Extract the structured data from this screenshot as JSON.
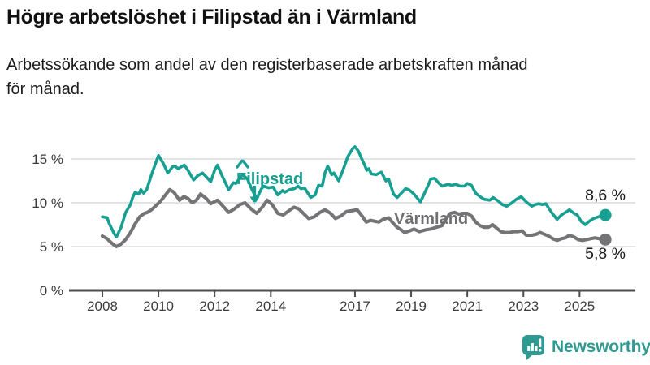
{
  "header": {
    "title": "Högre arbetslöshet i Filipstad än i Värmland",
    "subtitle_line1": "Arbetssökande som andel av den registerbaserade arbetskraften månad",
    "subtitle_line2": "för månad."
  },
  "colors": {
    "accent_teal": "#17a092",
    "line_gray": "#747477",
    "label_gray": "#6f6f72",
    "grid": "#dcdcdc",
    "axis": "#4d4d4d",
    "axis_text": "#3c3c3c",
    "end_label_text": "#1a1a1a",
    "logo_teal": "#2e9a92"
  },
  "footer": {
    "brand": "Newsworthy"
  },
  "chart_data": {
    "type": "line",
    "title": "Högre arbetslöshet i Filipstad än i Värmland",
    "subtitle": "Arbetssökande som andel av den registerbaserade arbetskraften månad för månad.",
    "x_axis": {
      "ticks": [
        2008,
        2010,
        2012,
        2014,
        2017,
        2019,
        2021,
        2023,
        2025
      ],
      "range": [
        2008,
        2026
      ],
      "grid": false
    },
    "y_axis": {
      "tick_values": [
        0,
        5,
        10,
        15
      ],
      "tick_labels": [
        "0 %",
        "5 %",
        "10 %",
        "15 %"
      ],
      "unit": "%",
      "range": [
        0,
        17
      ],
      "grid": true
    },
    "legend_position": "inline-annotations",
    "series": [
      {
        "name": "Filipstad",
        "color": "#17a092",
        "end_label": "8,6 %",
        "end_value": 8.6,
        "points": [
          [
            2008.0,
            8.4
          ],
          [
            2008.17,
            8.3
          ],
          [
            2008.25,
            7.6
          ],
          [
            2008.42,
            6.5
          ],
          [
            2008.5,
            6.1
          ],
          [
            2008.67,
            7.2
          ],
          [
            2008.83,
            8.9
          ],
          [
            2009.0,
            9.8
          ],
          [
            2009.08,
            10.6
          ],
          [
            2009.17,
            11.2
          ],
          [
            2009.3,
            11.0
          ],
          [
            2009.37,
            11.5
          ],
          [
            2009.47,
            11.1
          ],
          [
            2009.58,
            11.5
          ],
          [
            2009.75,
            13.2
          ],
          [
            2009.92,
            14.7
          ],
          [
            2010.0,
            15.4
          ],
          [
            2010.17,
            14.5
          ],
          [
            2010.33,
            13.4
          ],
          [
            2010.5,
            14.1
          ],
          [
            2010.58,
            14.2
          ],
          [
            2010.7,
            13.9
          ],
          [
            2010.92,
            14.3
          ],
          [
            2011.05,
            13.7
          ],
          [
            2011.25,
            12.6
          ],
          [
            2011.4,
            13.1
          ],
          [
            2011.57,
            13.4
          ],
          [
            2011.75,
            12.8
          ],
          [
            2011.86,
            12.4
          ],
          [
            2012.0,
            13.7
          ],
          [
            2012.1,
            14.3
          ],
          [
            2012.25,
            13.2
          ],
          [
            2012.5,
            11.5
          ],
          [
            2012.67,
            12.3
          ],
          [
            2012.75,
            12.2
          ],
          [
            2012.92,
            12.9
          ],
          [
            2013.0,
            13.2
          ],
          [
            2013.17,
            12.7
          ],
          [
            2013.33,
            11.5
          ],
          [
            2013.5,
            10.5
          ],
          [
            2013.67,
            11.6
          ],
          [
            2013.75,
            11.9
          ],
          [
            2013.92,
            11.7
          ],
          [
            2014.08,
            11.8
          ],
          [
            2014.25,
            10.9
          ],
          [
            2014.42,
            11.4
          ],
          [
            2014.5,
            11.2
          ],
          [
            2014.67,
            11.5
          ],
          [
            2014.83,
            11.6
          ],
          [
            2014.97,
            11.9
          ],
          [
            2015.08,
            11.6
          ],
          [
            2015.2,
            11.7
          ],
          [
            2015.42,
            10.6
          ],
          [
            2015.58,
            10.9
          ],
          [
            2015.7,
            12.0
          ],
          [
            2015.83,
            11.9
          ],
          [
            2015.93,
            13.4
          ],
          [
            2016.03,
            14.2
          ],
          [
            2016.17,
            13.2
          ],
          [
            2016.25,
            13.4
          ],
          [
            2016.42,
            12.5
          ],
          [
            2016.58,
            13.8
          ],
          [
            2016.75,
            15.3
          ],
          [
            2016.92,
            16.2
          ],
          [
            2017.0,
            16.4
          ],
          [
            2017.12,
            15.9
          ],
          [
            2017.27,
            14.8
          ],
          [
            2017.33,
            14.4
          ],
          [
            2017.42,
            13.7
          ],
          [
            2017.5,
            13.9
          ],
          [
            2017.58,
            13.3
          ],
          [
            2017.75,
            13.2
          ],
          [
            2017.94,
            13.5
          ],
          [
            2018.1,
            12.5
          ],
          [
            2018.2,
            12.7
          ],
          [
            2018.37,
            11.0
          ],
          [
            2018.5,
            10.6
          ],
          [
            2018.8,
            11.6
          ],
          [
            2018.92,
            11.5
          ],
          [
            2019.1,
            11.0
          ],
          [
            2019.33,
            10.1
          ],
          [
            2019.55,
            11.6
          ],
          [
            2019.7,
            12.7
          ],
          [
            2019.83,
            12.8
          ],
          [
            2020.0,
            12.2
          ],
          [
            2020.1,
            11.9
          ],
          [
            2020.3,
            12.1
          ],
          [
            2020.45,
            12.0
          ],
          [
            2020.6,
            12.1
          ],
          [
            2020.75,
            11.9
          ],
          [
            2020.9,
            11.9
          ],
          [
            2021.0,
            12.2
          ],
          [
            2021.15,
            12.0
          ],
          [
            2021.3,
            11.1
          ],
          [
            2021.45,
            10.7
          ],
          [
            2021.6,
            10.4
          ],
          [
            2021.8,
            10.3
          ],
          [
            2021.92,
            10.6
          ],
          [
            2022.1,
            10.2
          ],
          [
            2022.25,
            9.8
          ],
          [
            2022.4,
            9.6
          ],
          [
            2022.55,
            9.9
          ],
          [
            2022.75,
            10.4
          ],
          [
            2022.92,
            10.7
          ],
          [
            2023.1,
            10.1
          ],
          [
            2023.3,
            9.6
          ],
          [
            2023.42,
            9.8
          ],
          [
            2023.55,
            9.9
          ],
          [
            2023.67,
            9.8
          ],
          [
            2023.8,
            9.9
          ],
          [
            2023.92,
            9.3
          ],
          [
            2024.05,
            8.7
          ],
          [
            2024.2,
            8.1
          ],
          [
            2024.35,
            8.6
          ],
          [
            2024.5,
            8.9
          ],
          [
            2024.64,
            9.2
          ],
          [
            2024.8,
            8.8
          ],
          [
            2024.92,
            8.6
          ],
          [
            2025.05,
            7.9
          ],
          [
            2025.2,
            7.5
          ],
          [
            2025.35,
            7.9
          ],
          [
            2025.5,
            8.2
          ],
          [
            2025.67,
            8.4
          ],
          [
            2025.92,
            8.6
          ]
        ]
      },
      {
        "name": "Värmland",
        "color": "#747477",
        "end_label": "5,8 %",
        "end_value": 5.8,
        "points": [
          [
            2008.0,
            6.2
          ],
          [
            2008.17,
            5.9
          ],
          [
            2008.33,
            5.4
          ],
          [
            2008.5,
            5.0
          ],
          [
            2008.67,
            5.3
          ],
          [
            2008.83,
            5.8
          ],
          [
            2009.0,
            6.6
          ],
          [
            2009.17,
            7.6
          ],
          [
            2009.33,
            8.4
          ],
          [
            2009.5,
            8.8
          ],
          [
            2009.6,
            8.9
          ],
          [
            2009.75,
            9.2
          ],
          [
            2009.92,
            9.7
          ],
          [
            2010.08,
            10.2
          ],
          [
            2010.25,
            10.9
          ],
          [
            2010.4,
            11.5
          ],
          [
            2010.55,
            11.2
          ],
          [
            2010.75,
            10.3
          ],
          [
            2010.9,
            10.7
          ],
          [
            2011.05,
            10.5
          ],
          [
            2011.2,
            10.0
          ],
          [
            2011.35,
            10.3
          ],
          [
            2011.5,
            11.0
          ],
          [
            2011.7,
            10.5
          ],
          [
            2011.86,
            9.9
          ],
          [
            2012.1,
            10.3
          ],
          [
            2012.3,
            9.6
          ],
          [
            2012.5,
            8.9
          ],
          [
            2012.7,
            9.3
          ],
          [
            2012.9,
            9.8
          ],
          [
            2013.08,
            10.0
          ],
          [
            2013.3,
            9.3
          ],
          [
            2013.5,
            8.8
          ],
          [
            2013.7,
            9.5
          ],
          [
            2013.87,
            10.3
          ],
          [
            2014.05,
            9.8
          ],
          [
            2014.25,
            8.8
          ],
          [
            2014.44,
            8.6
          ],
          [
            2014.65,
            9.1
          ],
          [
            2014.83,
            9.5
          ],
          [
            2015.0,
            9.3
          ],
          [
            2015.16,
            8.8
          ],
          [
            2015.35,
            8.2
          ],
          [
            2015.55,
            8.4
          ],
          [
            2015.75,
            8.9
          ],
          [
            2015.93,
            9.2
          ],
          [
            2016.13,
            8.8
          ],
          [
            2016.3,
            8.2
          ],
          [
            2016.5,
            8.5
          ],
          [
            2016.7,
            9.0
          ],
          [
            2016.9,
            9.1
          ],
          [
            2017.08,
            9.2
          ],
          [
            2017.25,
            8.5
          ],
          [
            2017.4,
            7.8
          ],
          [
            2017.55,
            8.0
          ],
          [
            2017.7,
            7.9
          ],
          [
            2017.85,
            7.8
          ],
          [
            2018.0,
            8.1
          ],
          [
            2018.2,
            8.3
          ],
          [
            2018.35,
            7.7
          ],
          [
            2018.5,
            7.2
          ],
          [
            2018.65,
            6.9
          ],
          [
            2018.77,
            6.6
          ],
          [
            2018.95,
            6.8
          ],
          [
            2019.1,
            7.0
          ],
          [
            2019.3,
            6.7
          ],
          [
            2019.5,
            6.9
          ],
          [
            2019.7,
            7.0
          ],
          [
            2019.9,
            7.2
          ],
          [
            2020.1,
            7.4
          ],
          [
            2020.25,
            8.2
          ],
          [
            2020.4,
            8.8
          ],
          [
            2020.55,
            8.9
          ],
          [
            2020.7,
            8.7
          ],
          [
            2020.85,
            8.8
          ],
          [
            2021.0,
            8.8
          ],
          [
            2021.15,
            8.5
          ],
          [
            2021.3,
            7.8
          ],
          [
            2021.45,
            7.4
          ],
          [
            2021.6,
            7.2
          ],
          [
            2021.75,
            7.2
          ],
          [
            2021.9,
            7.5
          ],
          [
            2022.05,
            7.1
          ],
          [
            2022.2,
            6.7
          ],
          [
            2022.35,
            6.6
          ],
          [
            2022.5,
            6.6
          ],
          [
            2022.65,
            6.7
          ],
          [
            2022.8,
            6.7
          ],
          [
            2022.95,
            6.8
          ],
          [
            2023.1,
            6.3
          ],
          [
            2023.3,
            6.3
          ],
          [
            2023.45,
            6.4
          ],
          [
            2023.6,
            6.6
          ],
          [
            2023.75,
            6.4
          ],
          [
            2023.9,
            6.2
          ],
          [
            2024.05,
            5.9
          ],
          [
            2024.2,
            5.7
          ],
          [
            2024.35,
            5.9
          ],
          [
            2024.5,
            6.0
          ],
          [
            2024.64,
            6.3
          ],
          [
            2024.8,
            6.1
          ],
          [
            2024.95,
            5.8
          ],
          [
            2025.1,
            5.7
          ],
          [
            2025.25,
            5.8
          ],
          [
            2025.4,
            5.9
          ],
          [
            2025.55,
            6.0
          ],
          [
            2025.7,
            5.9
          ],
          [
            2025.92,
            5.8
          ]
        ]
      }
    ],
    "annotations": [
      {
        "text": "Filipstad",
        "series": "Filipstad"
      },
      {
        "text": "Värmland",
        "series": "Värmland"
      }
    ]
  }
}
